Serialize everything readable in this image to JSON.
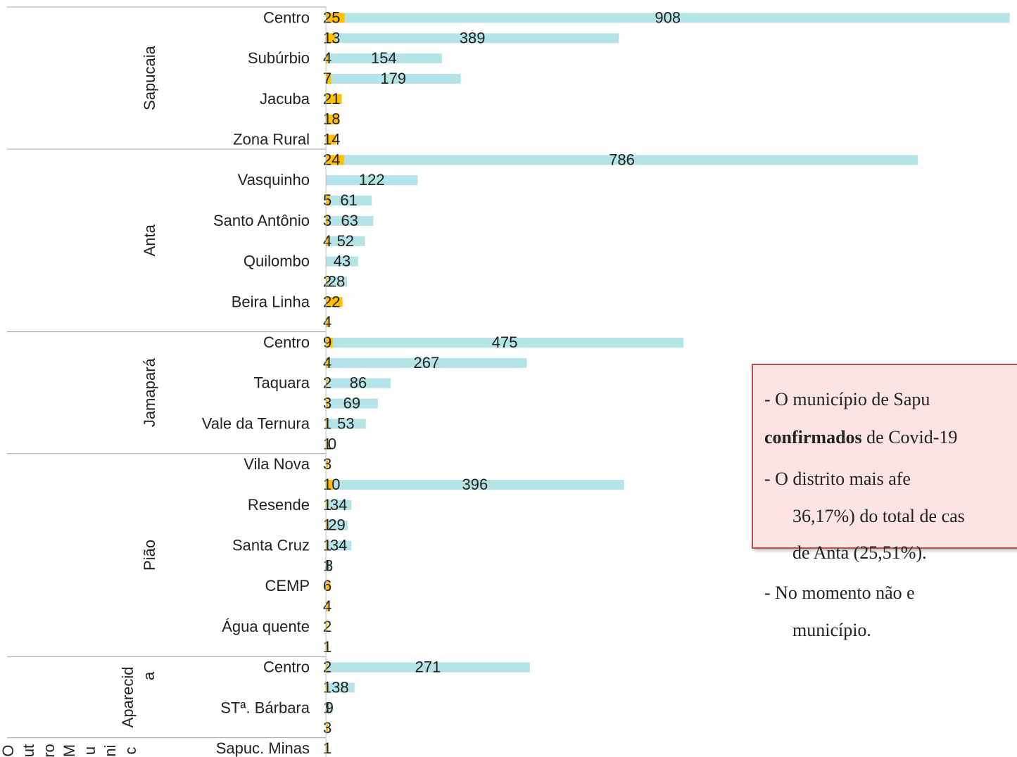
{
  "chart_data": {
    "type": "bar",
    "orientation": "horizontal",
    "colors": {
      "small": "#ffc000",
      "large": "#b4e3e8",
      "text": "#222222",
      "divider": "#a0a0a0"
    },
    "groups": [
      {
        "name": "Sapucaia",
        "name_lines": [
          "Sapucaia"
        ],
        "rows": [
          {
            "label": "Centro",
            "small": 25,
            "large": 908
          },
          {
            "label": "",
            "small": 13,
            "large": 389
          },
          {
            "label": "Subúrbio",
            "small": 4,
            "large": 154
          },
          {
            "label": "",
            "small": 7,
            "large": 179
          },
          {
            "label": "Jacuba",
            "small": 21,
            "large": null
          },
          {
            "label": "",
            "small": 18,
            "large": null
          },
          {
            "label": "Zona Rural",
            "small": 14,
            "large": null
          }
        ]
      },
      {
        "name": "Anta",
        "name_lines": [
          "Anta"
        ],
        "rows": [
          {
            "label": "",
            "small": 24,
            "large": 786
          },
          {
            "label": "Vasquinho",
            "small": null,
            "large": 122
          },
          {
            "label": "",
            "small": 5,
            "large": 61
          },
          {
            "label": "Santo Antônio",
            "small": 3,
            "large": 63
          },
          {
            "label": "",
            "small": 4,
            "large": 52
          },
          {
            "label": "Quilombo",
            "small": null,
            "large": 43
          },
          {
            "label": "",
            "small": 2,
            "large": 28
          },
          {
            "label": "Beira Linha",
            "small": 22,
            "large": null
          },
          {
            "label": "",
            "small": 4,
            "large": null
          }
        ]
      },
      {
        "name": "Jamapará",
        "name_lines": [
          "Jamapará"
        ],
        "rows": [
          {
            "label": "Centro",
            "small": 9,
            "large": 475
          },
          {
            "label": "",
            "small": 4,
            "large": 267
          },
          {
            "label": "Taquara",
            "small": 2,
            "large": 86
          },
          {
            "label": "",
            "small": 3,
            "large": 69
          },
          {
            "label": "Vale da Ternura",
            "small": 1,
            "large": 53
          },
          {
            "label": "",
            "small": 1,
            "large": 0
          }
        ]
      },
      {
        "name": "Pião",
        "name_lines": [
          "Pião"
        ],
        "rows": [
          {
            "label": "Vila Nova",
            "small": 3,
            "large": null
          },
          {
            "label": "",
            "small": 10,
            "large": 396
          },
          {
            "label": "Resende",
            "small": 1,
            "large": 34
          },
          {
            "label": "",
            "small": 1,
            "large": 29
          },
          {
            "label": "Santa Cruz",
            "small": 1,
            "large": 34
          },
          {
            "label": "",
            "small": 1,
            "large": 8
          },
          {
            "label": "CEMP",
            "small": 6,
            "large": null
          },
          {
            "label": "",
            "small": 4,
            "large": null
          },
          {
            "label": "Água quente",
            "small": 2,
            "large": null
          },
          {
            "label": "",
            "small": 1,
            "large": null
          }
        ]
      },
      {
        "name": "Aparecida",
        "name_lines": [
          "Aparecid",
          "a"
        ],
        "rows": [
          {
            "label": "Centro",
            "small": 2,
            "large": 271
          },
          {
            "label": "",
            "small": 1,
            "large": 38
          },
          {
            "label": "STª. Bárbara",
            "small": 1,
            "large": 9
          },
          {
            "label": "",
            "small": 3,
            "large": null
          }
        ]
      },
      {
        "name": "Outro Munic",
        "name_lines": [
          "O",
          "ut",
          "ro",
          "M",
          "u",
          "ni",
          "c"
        ],
        "rows": [
          {
            "label": "Sapuc. Minas",
            "small": 1,
            "large": null
          }
        ]
      }
    ]
  },
  "note": {
    "lines": [
      {
        "parts": [
          {
            "text": "-  O  município  de  Sapu",
            "bold": false
          }
        ]
      },
      {
        "parts": [
          {
            "text": "confirmados",
            "bold": true
          },
          {
            "text": " de Covid-19",
            "bold": false
          }
        ]
      },
      {
        "parts": [
          {
            "text": "-  O  distrito  mais  afe",
            "bold": false
          }
        ]
      },
      {
        "parts": [
          {
            "text": "36,17%) do total de cas",
            "bold": false
          }
        ]
      },
      {
        "parts": [
          {
            "text": "de Anta (25,51%).",
            "bold": false
          }
        ]
      },
      {
        "parts": [
          {
            "text": "-  No  momento  não  e",
            "bold": false
          }
        ]
      },
      {
        "parts": [
          {
            "text": "município.",
            "bold": false
          }
        ]
      }
    ]
  }
}
